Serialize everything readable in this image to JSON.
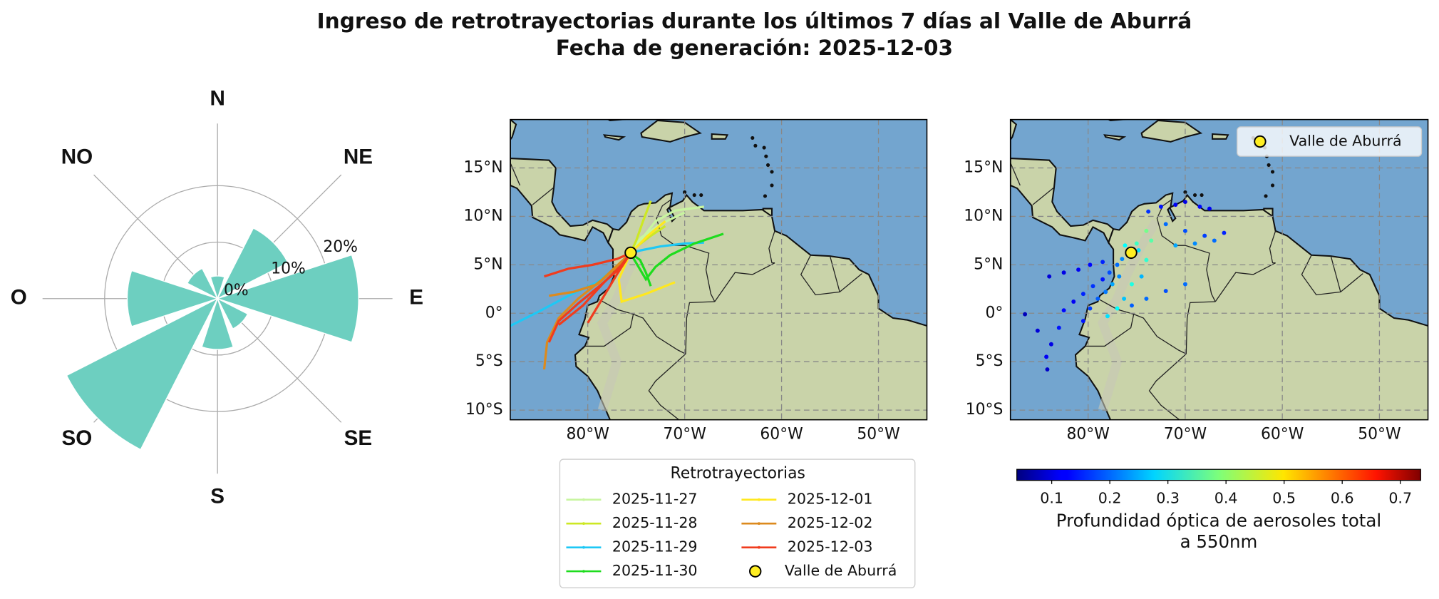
{
  "chart_data": [
    {
      "type": "rose",
      "title": "Ingreso de retrotrayectorias durante los últimos 7 días al Valle de Aburrá",
      "subtitle": "Fecha de generación: 2025-12-03",
      "categories": [
        "N",
        "NE",
        "E",
        "SE",
        "S",
        "SO",
        "O",
        "NO"
      ],
      "values": [
        4,
        14,
        25,
        6,
        9,
        30,
        16,
        6
      ],
      "color": "#6dcfc0",
      "ylim": [
        0,
        31
      ],
      "yticks": [
        {
          "value": 0,
          "label": "0%"
        },
        {
          "value": 10,
          "label": "10%"
        },
        {
          "value": 20,
          "label": "20%"
        }
      ],
      "grid": true
    },
    {
      "type": "map_lines",
      "xlim": [
        -88,
        -45
      ],
      "ylim": [
        -11,
        20
      ],
      "xticks": [
        {
          "value": -80,
          "label": "80°W"
        },
        {
          "value": -70,
          "label": "70°W"
        },
        {
          "value": -60,
          "label": "60°W"
        },
        {
          "value": -50,
          "label": "50°W"
        }
      ],
      "yticks": [
        {
          "value": -10,
          "label": "10°S"
        },
        {
          "value": -5,
          "label": "5°S"
        },
        {
          "value": 0,
          "label": "0°"
        },
        {
          "value": 5,
          "label": "5°N"
        },
        {
          "value": 10,
          "label": "10°N"
        },
        {
          "value": 15,
          "label": "15°N"
        }
      ],
      "grid": true,
      "legend_title": "Retrotrayectorias",
      "series": [
        {
          "name": "2025-11-27",
          "color": "#c8f5a0",
          "lines": [
            {
              "x": [
                -68,
                -71,
                -73,
                -75.6
              ],
              "y": [
                11,
                10.6,
                9.5,
                6.2
              ]
            },
            {
              "x": [
                -70,
                -72.5,
                -74.5,
                -75.6
              ],
              "y": [
                10.4,
                9.2,
                7.8,
                6.2
              ]
            }
          ]
        },
        {
          "name": "2025-11-28",
          "color": "#cde824",
          "lines": [
            {
              "x": [
                -73.5,
                -74.3,
                -75,
                -75.6
              ],
              "y": [
                11.6,
                9.5,
                7.5,
                6.2
              ]
            },
            {
              "x": [
                -72,
                -73.5,
                -74.8,
                -75.6
              ],
              "y": [
                9,
                8,
                7,
                6.2
              ]
            }
          ]
        },
        {
          "name": "2025-11-29",
          "color": "#1ec8f5",
          "lines": [
            {
              "x": [
                -88,
                -85,
                -82,
                -79,
                -77,
                -75.6
              ],
              "y": [
                -1.3,
                0.2,
                1.8,
                3.2,
                4.8,
                6.2
              ]
            },
            {
              "x": [
                -68,
                -70,
                -72.5,
                -74.5,
                -75.6
              ],
              "y": [
                7.3,
                7.2,
                6.9,
                6.5,
                6.2
              ]
            }
          ]
        },
        {
          "name": "2025-11-30",
          "color": "#1edc1e",
          "lines": [
            {
              "x": [
                -66,
                -69,
                -71.5,
                -73,
                -74,
                -75.6
              ],
              "y": [
                8.2,
                7.2,
                6,
                4.8,
                3.5,
                6.2
              ]
            },
            {
              "x": [
                -73.5,
                -74,
                -74.6,
                -75.6
              ],
              "y": [
                2.8,
                4.2,
                5.5,
                6.2
              ]
            }
          ]
        },
        {
          "name": "2025-12-01",
          "color": "#ffe81e",
          "lines": [
            {
              "x": [
                -71,
                -74,
                -76.5,
                -76.8,
                -75.6
              ],
              "y": [
                3.2,
                2,
                1.2,
                3.5,
                6.2
              ]
            },
            {
              "x": [
                -72,
                -73.8,
                -75.6
              ],
              "y": [
                9.5,
                8,
                6.2
              ]
            }
          ]
        },
        {
          "name": "2025-12-02",
          "color": "#dc8a1e",
          "lines": [
            {
              "x": [
                -84.5,
                -84.2,
                -83,
                -81,
                -78.5,
                -75.6
              ],
              "y": [
                -5.8,
                -3,
                -0.5,
                1.5,
                3.5,
                6.2
              ]
            },
            {
              "x": [
                -84,
                -81.5,
                -79,
                -77,
                -75.6
              ],
              "y": [
                1.8,
                2.2,
                3,
                4.8,
                6.2
              ]
            }
          ]
        },
        {
          "name": "2025-12-03",
          "color": "#f03c1e",
          "lines": [
            {
              "x": [
                -84.5,
                -82,
                -79.5,
                -77,
                -75.6
              ],
              "y": [
                3.8,
                4.6,
                5,
                5.6,
                6.2
              ]
            },
            {
              "x": [
                -84,
                -83,
                -81,
                -78.8,
                -76.5,
                -75.6
              ],
              "y": [
                -3,
                -0.8,
                1,
                2.8,
                4.8,
                6.2
              ]
            },
            {
              "x": [
                -83,
                -80.5,
                -78.5,
                -76.5,
                -75.6
              ],
              "y": [
                -1.2,
                0.8,
                3,
                5,
                6.2
              ]
            },
            {
              "x": [
                -80,
                -78.5,
                -77,
                -75.6
              ],
              "y": [
                -1,
                1.5,
                4,
                6.2
              ]
            }
          ]
        }
      ],
      "marker": {
        "name": "Valle de Aburrá",
        "x": -75.57,
        "y": 6.25,
        "color": "#ffee22"
      }
    },
    {
      "type": "map_scatter",
      "xlim": [
        -88,
        -45
      ],
      "ylim": [
        -11,
        20
      ],
      "xticks": [
        {
          "value": -80,
          "label": "80°W"
        },
        {
          "value": -70,
          "label": "70°W"
        },
        {
          "value": -60,
          "label": "60°W"
        },
        {
          "value": -50,
          "label": "50°W"
        }
      ],
      "yticks": [
        {
          "value": -10,
          "label": "10°S"
        },
        {
          "value": -5,
          "label": "5°S"
        },
        {
          "value": 0,
          "label": "0°"
        },
        {
          "value": 5,
          "label": "5°N"
        },
        {
          "value": 10,
          "label": "10°N"
        },
        {
          "value": 15,
          "label": "15°N"
        }
      ],
      "grid": true,
      "x": [
        -86.5,
        -85.2,
        -84.3,
        -84.2,
        -83.8,
        -83,
        -82.5,
        -81.5,
        -80.5,
        -79.5,
        -78.5,
        -77.8,
        -77,
        -76.5,
        -84,
        -82.5,
        -81,
        -79.8,
        -78.5,
        -80.5,
        -79.8,
        -79,
        -78.2,
        -77.5,
        -76.8,
        -78,
        -77,
        -76.3,
        -75.5,
        -74.5,
        -74,
        -73.5,
        -74,
        -73.8,
        -72.5,
        -71,
        -70,
        -68.5,
        -67.5,
        -72,
        -70,
        -68,
        -66,
        -71,
        -69,
        -67,
        -70,
        -72,
        -74,
        -75.5,
        -76.2,
        -75,
        -74.8
      ],
      "y": [
        -0.1,
        -1.8,
        -4.5,
        -5.8,
        -3.2,
        -1.5,
        0.3,
        1.2,
        2,
        2.8,
        3.5,
        4.2,
        5,
        5.6,
        3.8,
        4.2,
        4.5,
        5,
        5.3,
        -0.8,
        0.5,
        1.5,
        2.2,
        3,
        3.8,
        -0.3,
        0.5,
        1.5,
        3,
        3.8,
        5.5,
        7.5,
        8.5,
        10.5,
        11,
        11.2,
        11.5,
        11,
        10.8,
        9.2,
        8.5,
        8,
        8.3,
        7,
        7.2,
        7.5,
        3,
        2.3,
        1.5,
        0.8,
        7,
        7.2,
        6.5
      ],
      "c": [
        0.08,
        0.1,
        0.12,
        0.09,
        0.11,
        0.14,
        0.13,
        0.12,
        0.15,
        0.16,
        0.14,
        0.18,
        0.2,
        0.22,
        0.1,
        0.11,
        0.12,
        0.13,
        0.15,
        0.14,
        0.17,
        0.19,
        0.21,
        0.24,
        0.22,
        0.28,
        0.3,
        0.26,
        0.32,
        0.25,
        0.33,
        0.36,
        0.38,
        0.16,
        0.14,
        0.12,
        0.11,
        0.13,
        0.12,
        0.2,
        0.18,
        0.17,
        0.15,
        0.24,
        0.22,
        0.2,
        0.2,
        0.18,
        0.2,
        0.19,
        0.3,
        0.34,
        0.28
      ],
      "colormap": "jet",
      "clim": [
        0.04,
        0.735
      ],
      "cticks": [
        0.1,
        0.2,
        0.3,
        0.4,
        0.5,
        0.6,
        0.7
      ],
      "colorbar_label": [
        "Profundidad óptica de aerosoles total",
        "a 550nm"
      ],
      "marker": {
        "name": "Valle de Aburrá",
        "x": -75.57,
        "y": 6.25,
        "color": "#ffee22"
      },
      "legend": "upper right"
    }
  ]
}
